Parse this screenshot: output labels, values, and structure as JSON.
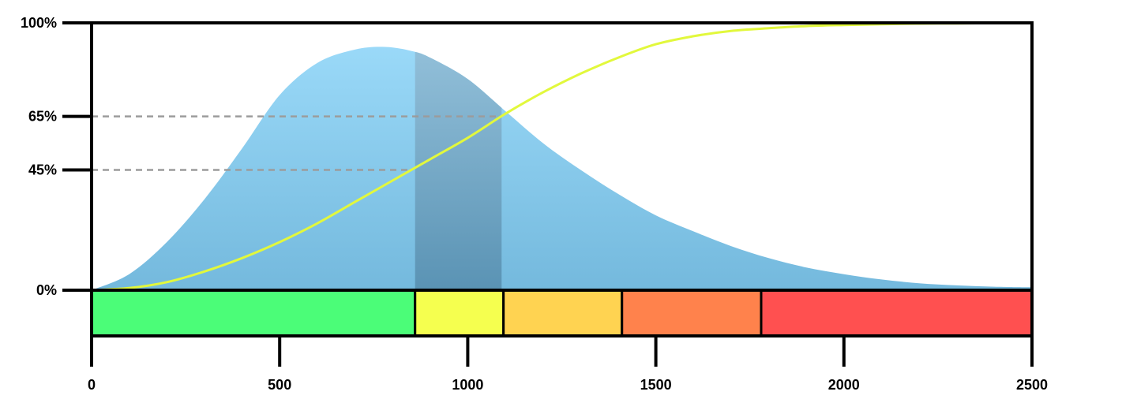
{
  "chart_data": {
    "type": "area",
    "xlim": [
      0,
      2500
    ],
    "ylim": [
      0,
      100
    ],
    "y_ticks": [
      {
        "value": 100,
        "label": "100%"
      },
      {
        "value": 65,
        "label": "65%"
      },
      {
        "value": 45,
        "label": "45%"
      },
      {
        "value": 0,
        "label": "0%"
      }
    ],
    "x_ticks": [
      {
        "value": 0,
        "label": "0"
      },
      {
        "value": 500,
        "label": "500"
      },
      {
        "value": 1000,
        "label": "1000"
      },
      {
        "value": 1500,
        "label": "1500"
      },
      {
        "value": 2000,
        "label": "2000"
      },
      {
        "value": 2500,
        "label": "2500"
      }
    ],
    "series": [
      {
        "kind": "density",
        "color": "#8fcdef",
        "x": [
          0,
          100,
          200,
          300,
          400,
          500,
          600,
          700,
          780,
          850,
          900,
          1000,
          1100,
          1200,
          1300,
          1400,
          1500,
          1600,
          1700,
          1800,
          1900,
          2000,
          2100,
          2200,
          2300,
          2400,
          2500
        ],
        "y": [
          0,
          6,
          18,
          34,
          53,
          73,
          85,
          90,
          91,
          89.5,
          87,
          79,
          67,
          55,
          45,
          36,
          28,
          22,
          16.5,
          12,
          8.5,
          6,
          4,
          2.6,
          1.8,
          1.3,
          1.1
        ]
      },
      {
        "kind": "cumulative",
        "color": "#e2f83c",
        "x": [
          0,
          100,
          200,
          300,
          400,
          500,
          600,
          700,
          800,
          900,
          1000,
          1100,
          1200,
          1300,
          1400,
          1500,
          1600,
          1700,
          1800,
          1900,
          2000,
          2100,
          2200,
          2300,
          2400,
          2500
        ],
        "y": [
          0,
          0.8,
          3,
          7,
          12,
          18,
          25,
          33,
          41,
          49,
          57,
          66,
          74,
          81,
          87,
          92,
          95,
          97,
          98,
          98.8,
          99.2,
          99.5,
          99.7,
          99.8,
          99.9,
          100
        ]
      }
    ],
    "highlight_band": {
      "x0": 860,
      "x1": 1090,
      "color": "#5b93b5"
    },
    "reference_lines": [
      65,
      45
    ],
    "zones": [
      {
        "x0": 0,
        "x1": 860,
        "color": "#4bfd78"
      },
      {
        "x0": 860,
        "x1": 1095,
        "color": "#f5ff4f"
      },
      {
        "x0": 1095,
        "x1": 1410,
        "color": "#ffd351"
      },
      {
        "x0": 1410,
        "x1": 1780,
        "color": "#ff824c"
      },
      {
        "x0": 1780,
        "x1": 2500,
        "color": "#ff5050"
      }
    ]
  }
}
